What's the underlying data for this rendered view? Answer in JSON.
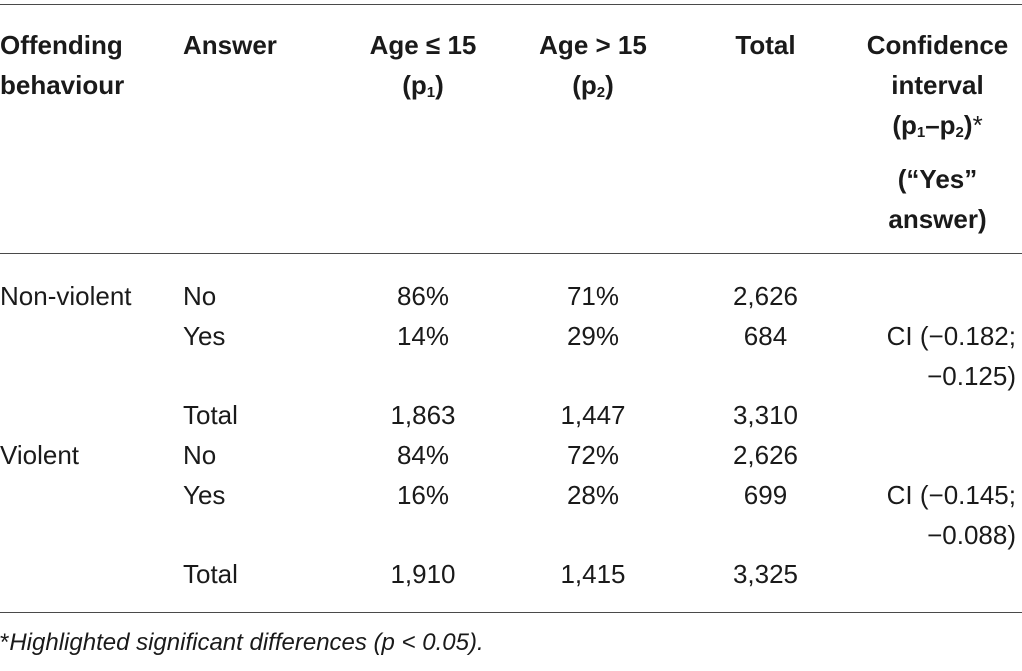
{
  "header": {
    "col1": [
      "Offending",
      "behaviour"
    ],
    "col2": "Answer",
    "col3": {
      "line1": "Age ≤ 15",
      "line2": "(p",
      "sub": "1",
      "close": ")"
    },
    "col4": {
      "line1": "Age > 15",
      "line2": "(p",
      "sub": "2",
      "close": ")"
    },
    "col5": "Total",
    "col6": {
      "line1": "Confidence",
      "line2": "interval",
      "line3_a": "(p",
      "line3_sub1": "1",
      "line3_b": "–p",
      "line3_sub2": "2",
      "line3_c": ")",
      "line3_star": "*",
      "line4": "(“Yes”",
      "line5": "answer)"
    }
  },
  "groups": [
    {
      "label": "Non-violent",
      "rows": [
        {
          "answer": "No",
          "p1": "86%",
          "p2": "71%",
          "total": "2,626",
          "ci": ""
        },
        {
          "answer": "Yes",
          "p1": "14%",
          "p2": "29%",
          "total": "684",
          "ci": "CI (−0.182;",
          "ci2": "−0.125)"
        },
        {
          "answer": "Total",
          "p1": "1,863",
          "p2": "1,447",
          "total": "3,310",
          "ci": ""
        }
      ]
    },
    {
      "label": "Violent",
      "rows": [
        {
          "answer": "No",
          "p1": "84%",
          "p2": "72%",
          "total": "2,626",
          "ci": ""
        },
        {
          "answer": "Yes",
          "p1": "16%",
          "p2": "28%",
          "total": "699",
          "ci": "CI (−0.145;",
          "ci2": "−0.088)"
        },
        {
          "answer": "Total",
          "p1": "1,910",
          "p2": "1,415",
          "total": "3,325",
          "ci": ""
        }
      ]
    }
  ],
  "footnote": {
    "star": "*",
    "text": "Highlighted significant differences (p < 0.05)."
  }
}
